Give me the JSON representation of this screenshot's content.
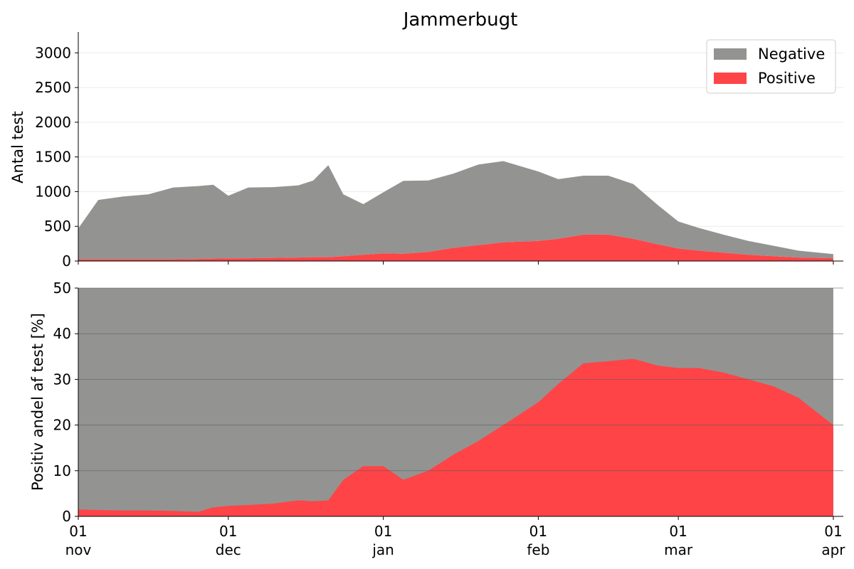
{
  "chart_data": [
    {
      "type": "area",
      "stacked": true,
      "title": "Jammerbugt",
      "ylabel": "Antal test",
      "xlabel": "",
      "ylim": [
        0,
        3300
      ],
      "yticks": [
        0,
        500,
        1000,
        1500,
        2000,
        2500,
        3000
      ],
      "grid": "y",
      "legend": "top-right",
      "x": [
        "2020-11-01",
        "2020-11-05",
        "2020-11-10",
        "2020-11-15",
        "2020-11-20",
        "2020-11-25",
        "2020-11-28",
        "2020-12-01",
        "2020-12-05",
        "2020-12-10",
        "2020-12-15",
        "2020-12-18",
        "2020-12-21",
        "2020-12-24",
        "2020-12-28",
        "2021-01-01",
        "2021-01-05",
        "2021-01-10",
        "2021-01-15",
        "2021-01-20",
        "2021-01-25",
        "2021-02-01",
        "2021-02-05",
        "2021-02-10",
        "2021-02-15",
        "2021-02-20",
        "2021-02-25",
        "2021-03-01",
        "2021-03-05",
        "2021-03-10",
        "2021-03-15",
        "2021-03-20",
        "2021-03-25",
        "2021-04-01"
      ],
      "series": [
        {
          "name": "Positive",
          "color": "#ff4448",
          "values": [
            25,
            25,
            25,
            25,
            25,
            30,
            35,
            38,
            40,
            45,
            50,
            55,
            55,
            70,
            90,
            110,
            105,
            130,
            190,
            230,
            270,
            290,
            320,
            380,
            380,
            320,
            240,
            180,
            150,
            120,
            90,
            70,
            50,
            40
          ]
        },
        {
          "name": "Negative",
          "color": "#939491",
          "values": [
            445,
            855,
            905,
            935,
            1035,
            1050,
            1065,
            902,
            1020,
            1020,
            1040,
            1105,
            1325,
            890,
            730,
            880,
            1050,
            1030,
            1070,
            1160,
            1170,
            1000,
            860,
            850,
            850,
            790,
            560,
            390,
            330,
            260,
            200,
            150,
            100,
            60
          ]
        }
      ]
    },
    {
      "type": "area",
      "ylabel": "Positiv andel af test [%]",
      "xlabel": "",
      "ylim": [
        0,
        50
      ],
      "yticks": [
        0,
        10,
        20,
        30,
        40,
        50
      ],
      "grid": "y",
      "x": [
        "2020-11-01",
        "2020-11-05",
        "2020-11-10",
        "2020-11-15",
        "2020-11-20",
        "2020-11-25",
        "2020-11-28",
        "2020-12-01",
        "2020-12-05",
        "2020-12-10",
        "2020-12-15",
        "2020-12-18",
        "2020-12-21",
        "2020-12-24",
        "2020-12-28",
        "2021-01-01",
        "2021-01-05",
        "2021-01-10",
        "2021-01-15",
        "2021-01-20",
        "2021-01-25",
        "2021-02-01",
        "2021-02-05",
        "2021-02-10",
        "2021-02-15",
        "2021-02-20",
        "2021-02-25",
        "2021-03-01",
        "2021-03-05",
        "2021-03-10",
        "2021-03-15",
        "2021-03-20",
        "2021-03-25",
        "2021-04-01"
      ],
      "series": [
        {
          "name": "Positive",
          "color": "#ff4448",
          "values": [
            1.5,
            1.4,
            1.3,
            1.3,
            1.2,
            1.0,
            2.0,
            2.3,
            2.5,
            2.8,
            3.5,
            3.3,
            3.5,
            8.0,
            11.0,
            11.0,
            8.0,
            10.0,
            13.5,
            16.5,
            20.0,
            25.0,
            29.0,
            33.5,
            34.0,
            34.5,
            33.0,
            32.5,
            32.5,
            31.5,
            30.0,
            28.5,
            26.0,
            20.0
          ]
        },
        {
          "name": "Negative",
          "color": "#939491",
          "fill_to": 50
        }
      ]
    }
  ],
  "x_axis": {
    "ticks": [
      {
        "date": "2020-11-01",
        "day": "01",
        "month": "nov"
      },
      {
        "date": "2020-12-01",
        "day": "01",
        "month": "dec"
      },
      {
        "date": "2021-01-01",
        "day": "01",
        "month": "jan"
      },
      {
        "date": "2021-02-01",
        "day": "01",
        "month": "feb"
      },
      {
        "date": "2021-03-01",
        "day": "01",
        "month": "mar"
      },
      {
        "date": "2021-04-01",
        "day": "01",
        "month": "apr"
      }
    ],
    "range": [
      "2020-11-01",
      "2021-04-03"
    ]
  }
}
